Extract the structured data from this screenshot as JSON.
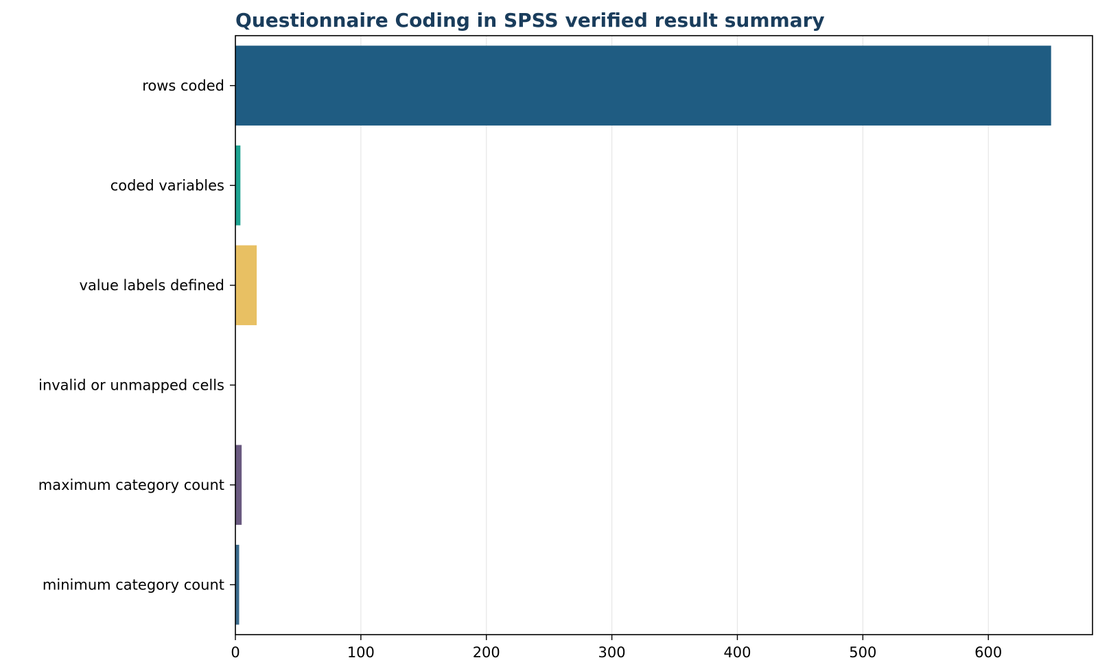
{
  "chart_data": {
    "type": "bar",
    "orientation": "horizontal",
    "title": "Questionnaire Coding in SPSS verified result summary",
    "xlabel": "",
    "ylabel": "",
    "categories": [
      "rows coded",
      "coded variables",
      "value labels defined",
      "invalid or unmapped cells",
      "maximum category count",
      "minimum category count"
    ],
    "values": [
      650,
      4,
      17,
      0,
      5,
      3
    ],
    "colors": [
      "#1f5c82",
      "#1fa391",
      "#e8c063",
      "#1f5c82",
      "#6a5a80",
      "#3a6a8c"
    ],
    "xlim": [
      0,
      683
    ],
    "xticks": [
      0,
      100,
      200,
      300,
      400,
      500,
      600
    ],
    "grid": "vertical",
    "legend": "none"
  },
  "theme": {
    "title_color": "#1a3d5c",
    "grid_color": "#e6e6e6",
    "axis_color": "#000000"
  }
}
